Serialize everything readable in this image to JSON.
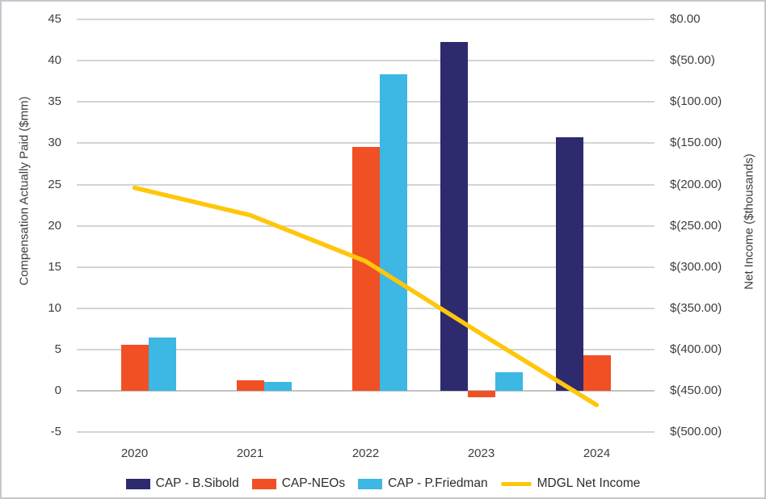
{
  "chart_data": {
    "type": "bar",
    "subtype": "clustered-bar-with-line-combo",
    "categories": [
      "2020",
      "2021",
      "2022",
      "2023",
      "2024"
    ],
    "series": [
      {
        "name": "CAP - B.Sibold",
        "type": "bar",
        "axis": "left",
        "color": "#2d2a6e",
        "values": [
          null,
          null,
          null,
          42.3,
          30.7
        ]
      },
      {
        "name": "CAP-NEOs",
        "type": "bar",
        "axis": "left",
        "color": "#f05023",
        "values": [
          5.6,
          1.3,
          29.6,
          -0.8,
          4.3
        ]
      },
      {
        "name": "CAP - P.Friedman",
        "type": "bar",
        "axis": "left",
        "color": "#3db7e4",
        "values": [
          6.5,
          1.1,
          38.4,
          2.3,
          null
        ]
      },
      {
        "name": "MDGL Net Income",
        "type": "line",
        "axis": "right",
        "color": "#ffc60b",
        "values": [
          -204,
          -237,
          -293,
          -381,
          -467
        ]
      }
    ],
    "left_axis": {
      "title": "Compensation Actually Paid ($mm)",
      "min": -5,
      "max": 45,
      "step": 5,
      "ticks": [
        "45",
        "40",
        "35",
        "30",
        "25",
        "20",
        "15",
        "10",
        "5",
        "0",
        "-5"
      ]
    },
    "right_axis": {
      "title": "Net Income ($thousands)",
      "min": -500,
      "max": 0,
      "step": 50,
      "ticks": [
        "$0.00",
        "$(50.00)",
        "$(100.00)",
        "$(150.00)",
        "$(200.00)",
        "$(250.00)",
        "$(300.00)",
        "$(350.00)",
        "$(400.00)",
        "$(450.00)",
        "$(500.00)"
      ]
    },
    "legend_position": "bottom",
    "grid": true,
    "colors": {
      "gridline": "#d4d4d4",
      "zero_axis_line": "#c2c2c2",
      "text": "#3d3d3d",
      "background": "#ffffff",
      "border": "#c3c9ce"
    }
  }
}
